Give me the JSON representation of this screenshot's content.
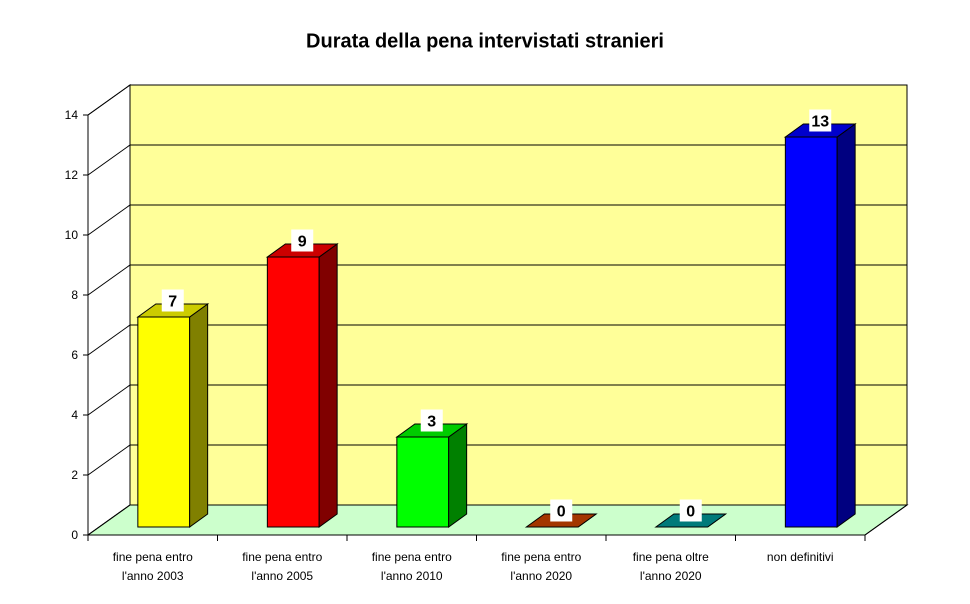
{
  "chart_data": {
    "type": "bar3d",
    "title": "Durata della pena intervistati stranieri",
    "categories": [
      "fine pena entro\nl'anno 2003",
      "fine pena entro\nl'anno 2005",
      "fine pena entro\nl'anno 2010",
      "fine pena entro\nl'anno 2020",
      "fine pena oltre\nl'anno 2020",
      "non definitivi"
    ],
    "values": [
      7,
      9,
      3,
      0,
      0,
      13
    ],
    "colors": [
      "#ffff00",
      "#ff0000",
      "#00ff00",
      "#cc4400",
      "#009999",
      "#0000ff"
    ],
    "ylim": [
      0,
      14
    ],
    "yticks": [
      0,
      2,
      4,
      6,
      8,
      10,
      12,
      14
    ],
    "grid": true,
    "wall_color": "#ffff99",
    "floor_color": "#ccffcc"
  }
}
